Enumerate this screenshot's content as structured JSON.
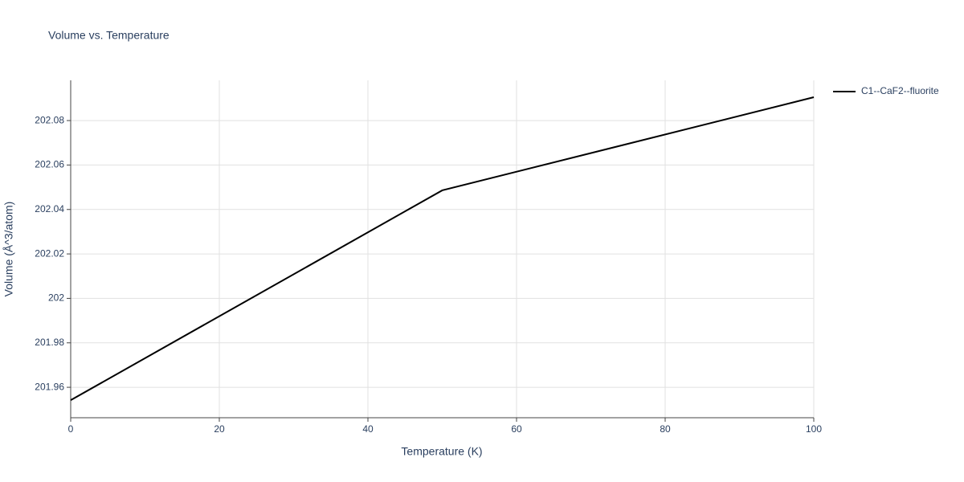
{
  "chart_data": {
    "type": "line",
    "title": "Volume vs. Temperature",
    "x_label": "Temperature (K)",
    "y_label": "Volume (Å^3/atom)",
    "x": [
      0,
      50,
      100
    ],
    "series": [
      {
        "name": "C1--CaF2--fluorite",
        "color": "#000000",
        "values": [
          201.9542,
          202.0486,
          202.0905
        ]
      }
    ],
    "xlim": [
      0,
      100
    ],
    "xticks": [
      0,
      20,
      40,
      60,
      80,
      100
    ],
    "ylim": [
      201.9463,
      202.0981
    ],
    "yticks": [
      201.96,
      201.98,
      202,
      202.02,
      202.04,
      202.06,
      202.08
    ],
    "grid": true,
    "legend": "right"
  }
}
